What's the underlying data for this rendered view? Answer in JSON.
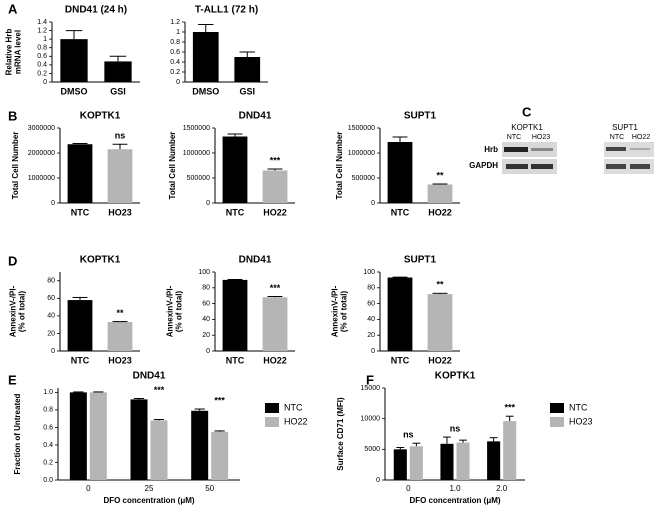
{
  "chart_data": [
    {
      "type": "bar",
      "panel": "A",
      "title": "DND41 (24 h)",
      "ylabel": [
        "Relative Hrb",
        "mRNA level"
      ],
      "categories": [
        "DMSO",
        "GSI"
      ],
      "values": [
        1.0,
        0.48
      ],
      "errors": [
        0.2,
        0.12
      ],
      "colors": [
        "#000000",
        "#000000"
      ],
      "significance": [
        null,
        null
      ],
      "ylim": [
        0,
        1.4
      ],
      "yticks": [
        0,
        0.2,
        0.4,
        0.6,
        0.8,
        1,
        1.2,
        1.4
      ]
    },
    {
      "type": "bar",
      "title": "T-ALL1 (72 h)",
      "categories": [
        "DMSO",
        "GSI"
      ],
      "values": [
        1.0,
        0.5
      ],
      "errors": [
        0.15,
        0.1
      ],
      "colors": [
        "#000000",
        "#000000"
      ],
      "significance": [
        null,
        null
      ],
      "ylim": [
        0,
        1.2
      ],
      "yticks": [
        0,
        0.2,
        0.4,
        0.6,
        0.8,
        1,
        1.2
      ]
    },
    {
      "type": "bar",
      "panel": "B",
      "title": "KOPTK1",
      "ylabel": [
        "Total Cell Number"
      ],
      "categories": [
        "NTC",
        "HO23"
      ],
      "values": [
        2350000,
        2150000
      ],
      "errors": [
        30000,
        200000
      ],
      "colors": [
        "#000000",
        "#b5b5b5"
      ],
      "significance": [
        null,
        "ns"
      ],
      "ylim": [
        0,
        3000000
      ],
      "yticks": [
        0,
        1000000,
        2000000,
        3000000
      ]
    },
    {
      "type": "bar",
      "title": "DND41",
      "ylabel": [
        "Total Cell Number"
      ],
      "categories": [
        "NTC",
        "HO22"
      ],
      "values": [
        1330000,
        650000
      ],
      "errors": [
        50000,
        30000
      ],
      "colors": [
        "#000000",
        "#b5b5b5"
      ],
      "significance": [
        null,
        "***"
      ],
      "ylim": [
        0,
        1500000
      ],
      "yticks": [
        0,
        500000,
        1000000,
        1500000
      ]
    },
    {
      "type": "bar",
      "title": "SUPT1",
      "ylabel": [
        "Total Cell Number"
      ],
      "categories": [
        "NTC",
        "HO22"
      ],
      "values": [
        1220000,
        370000
      ],
      "errors": [
        100000,
        10000
      ],
      "colors": [
        "#000000",
        "#b5b5b5"
      ],
      "significance": [
        null,
        "**"
      ],
      "ylim": [
        0,
        1500000
      ],
      "yticks": [
        0,
        500000,
        1000000,
        1500000
      ]
    },
    {
      "type": "bar",
      "panel": "D",
      "title": "KOPTK1",
      "ylabel": [
        "AnnexinV-/PI-",
        "(% of total)"
      ],
      "categories": [
        "NTC",
        "HO23"
      ],
      "values": [
        58,
        33
      ],
      "errors": [
        3,
        0.5
      ],
      "colors": [
        "#000000",
        "#b5b5b5"
      ],
      "significance": [
        null,
        "**"
      ],
      "ylim": [
        0,
        90
      ],
      "yticks": [
        0,
        20,
        40,
        60,
        80
      ]
    },
    {
      "type": "bar",
      "title": "DND41",
      "ylabel": [
        "AnnexinV-/PI-",
        "(% of total)"
      ],
      "categories": [
        "NTC",
        "HO22"
      ],
      "values": [
        90,
        68
      ],
      "errors": [
        0.5,
        1
      ],
      "colors": [
        "#000000",
        "#b5b5b5"
      ],
      "significance": [
        null,
        "***"
      ],
      "ylim": [
        0,
        100
      ],
      "yticks": [
        0,
        20,
        40,
        60,
        80,
        100
      ]
    },
    {
      "type": "bar",
      "title": "SUPT1",
      "ylabel": [
        "AnnexinV-/PI-",
        "(% of total)"
      ],
      "categories": [
        "NTC",
        "HO22"
      ],
      "values": [
        93,
        72
      ],
      "errors": [
        0.5,
        1
      ],
      "colors": [
        "#000000",
        "#b5b5b5"
      ],
      "significance": [
        null,
        "**"
      ],
      "ylim": [
        0,
        100
      ],
      "yticks": [
        0,
        20,
        40,
        60,
        80,
        100
      ]
    },
    {
      "type": "grouped_bar",
      "panel": "E",
      "title": "DND41",
      "ylabel": [
        "Fraction of Untreated"
      ],
      "xlabel": "DFO concentration (μM)",
      "categories": [
        "0",
        "25",
        "50"
      ],
      "series": [
        {
          "name": "NTC",
          "color": "#000000",
          "values": [
            1.0,
            0.92,
            0.79
          ],
          "errors": [
            0.005,
            0.01,
            0.02
          ]
        },
        {
          "name": "HO22",
          "color": "#b5b5b5",
          "values": [
            1.0,
            0.68,
            0.55
          ],
          "errors": [
            0.005,
            0.01,
            0.01
          ]
        }
      ],
      "significance": [
        null,
        "***",
        "***"
      ],
      "ylim": [
        0,
        1.05
      ],
      "yticks": [
        {
          "value": 0,
          "label": "0.0"
        },
        0.2,
        0.4,
        0.6,
        0.8,
        {
          "value": 1,
          "label": "1.0"
        }
      ]
    },
    {
      "type": "grouped_bar",
      "panel": "F",
      "title": "KOPTK1",
      "ylabel": [
        "Surface CD71 (MFI)"
      ],
      "xlabel": "DFO concentration (μM)",
      "categories": [
        "0",
        "1.0",
        "2.0"
      ],
      "series": [
        {
          "name": "NTC",
          "color": "#000000",
          "values": [
            5000,
            5900,
            6300
          ],
          "errors": [
            300,
            1100,
            600
          ]
        },
        {
          "name": "HO23",
          "color": "#b5b5b5",
          "values": [
            5500,
            6100,
            9600
          ],
          "errors": [
            500,
            400,
            800
          ]
        }
      ],
      "significance": [
        "ns",
        "ns",
        "***"
      ],
      "ylim": [
        0,
        15000
      ],
      "yticks": [
        0,
        5000,
        10000,
        15000
      ]
    }
  ],
  "blot": {
    "panel": "C",
    "groups": [
      "KOPTK1",
      "SUPT1"
    ],
    "lanes": [
      "NTC",
      "HO23",
      "NTC",
      "HO22"
    ],
    "rows": [
      "Hrb",
      "GAPDH"
    ]
  }
}
